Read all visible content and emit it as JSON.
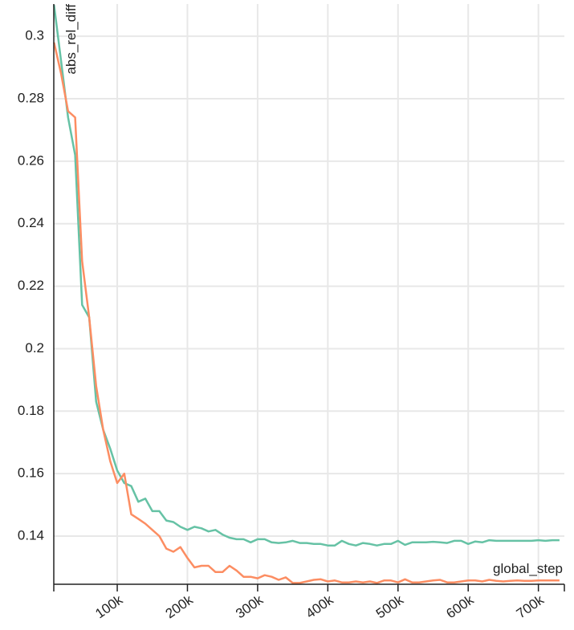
{
  "chart_data": {
    "type": "line",
    "y_label": "abs_rel_diff",
    "x_label": "global_step",
    "x": [
      10000,
      20000,
      30000,
      40000,
      50000,
      60000,
      70000,
      80000,
      90000,
      100000,
      110000,
      120000,
      130000,
      140000,
      150000,
      160000,
      170000,
      180000,
      190000,
      200000,
      210000,
      220000,
      230000,
      240000,
      250000,
      260000,
      270000,
      280000,
      290000,
      300000,
      310000,
      320000,
      330000,
      340000,
      350000,
      360000,
      370000,
      380000,
      390000,
      400000,
      410000,
      420000,
      430000,
      440000,
      450000,
      460000,
      470000,
      480000,
      490000,
      500000,
      510000,
      520000,
      530000,
      540000,
      550000,
      560000,
      570000,
      580000,
      590000,
      600000,
      610000,
      620000,
      630000,
      640000,
      650000,
      660000,
      670000,
      680000,
      690000,
      700000,
      710000,
      720000,
      730000
    ],
    "series": [
      {
        "color": "#66c2a5",
        "values": [
          0.31,
          0.292,
          0.274,
          0.262,
          0.214,
          0.21,
          0.183,
          0.174,
          0.168,
          0.161,
          0.157,
          0.156,
          0.151,
          0.152,
          0.148,
          0.148,
          0.145,
          0.1445,
          0.143,
          0.142,
          0.143,
          0.1425,
          0.1415,
          0.142,
          0.1405,
          0.1395,
          0.139,
          0.139,
          0.138,
          0.139,
          0.139,
          0.138,
          0.1378,
          0.138,
          0.1385,
          0.1378,
          0.1378,
          0.1375,
          0.1375,
          0.137,
          0.137,
          0.1385,
          0.1375,
          0.137,
          0.1378,
          0.1375,
          0.137,
          0.1375,
          0.1375,
          0.1385,
          0.1372,
          0.138,
          0.138,
          0.138,
          0.1382,
          0.138,
          0.1378,
          0.1385,
          0.1385,
          0.1375,
          0.1383,
          0.138,
          0.1387,
          0.1385,
          0.1385,
          0.1385,
          0.1385,
          0.1385,
          0.1385,
          0.1387,
          0.1385,
          0.1387,
          0.1387
        ]
      },
      {
        "color": "#fc8d62",
        "values": [
          0.298,
          0.288,
          0.276,
          0.274,
          0.228,
          0.21,
          0.188,
          0.174,
          0.164,
          0.157,
          0.16,
          0.147,
          0.1455,
          0.144,
          0.142,
          0.14,
          0.136,
          0.135,
          0.1365,
          0.133,
          0.13,
          0.1305,
          0.1305,
          0.1285,
          0.1285,
          0.1305,
          0.129,
          0.127,
          0.127,
          0.1265,
          0.1275,
          0.127,
          0.126,
          0.1268,
          0.125,
          0.125,
          0.1255,
          0.126,
          0.1262,
          0.1255,
          0.1258,
          0.1252,
          0.1252,
          0.1255,
          0.1252,
          0.1255,
          0.125,
          0.1258,
          0.1258,
          0.1252,
          0.1262,
          0.1252,
          0.1252,
          0.1255,
          0.1258,
          0.126,
          0.1252,
          0.1252,
          0.1255,
          0.1258,
          0.1258,
          0.1255,
          0.126,
          0.1257,
          0.1255,
          0.1257,
          0.1258,
          0.1257,
          0.1257,
          0.1258,
          0.1258,
          0.1258,
          0.1258
        ]
      }
    ],
    "xlim": [
      9600,
      737000
    ],
    "ylim": [
      0.1246,
      0.3103
    ],
    "xticks": [
      {
        "value": 100000,
        "label": "100k"
      },
      {
        "value": 200000,
        "label": "200k"
      },
      {
        "value": 300000,
        "label": "300k"
      },
      {
        "value": 400000,
        "label": "400k"
      },
      {
        "value": 500000,
        "label": "500k"
      },
      {
        "value": 600000,
        "label": "600k"
      },
      {
        "value": 700000,
        "label": "700k"
      }
    ],
    "yticks": [
      0.14,
      0.16,
      0.18,
      0.2,
      0.22,
      0.24,
      0.26,
      0.28,
      0.3
    ],
    "grid": true
  }
}
